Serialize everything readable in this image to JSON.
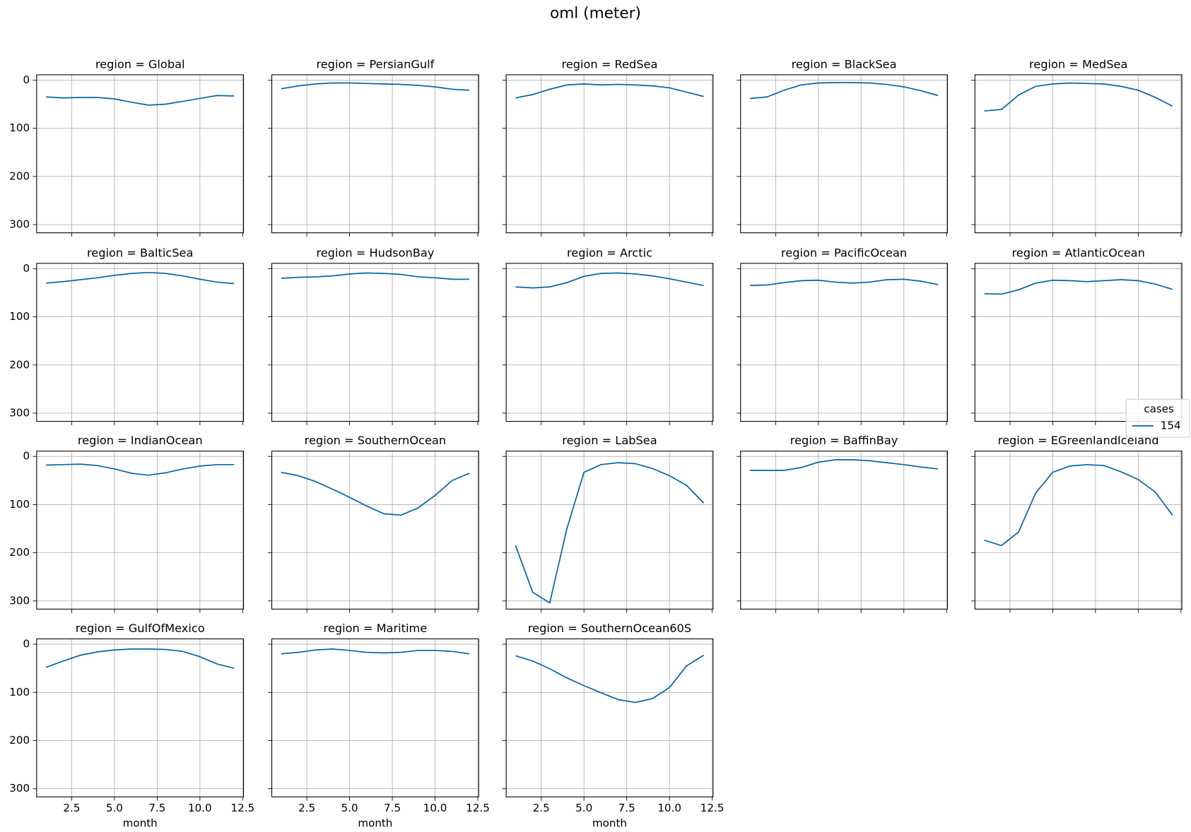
{
  "title": "oml (meter)",
  "legend": {
    "title": "cases",
    "location": "center right"
  },
  "chart_data": [
    {
      "type": "line",
      "title": "region = Global",
      "x": [
        1,
        2,
        3,
        4,
        5,
        6,
        7,
        8,
        9,
        10,
        11,
        12
      ],
      "series": [
        {
          "name": "154",
          "color": "#0567a6",
          "values": [
            35,
            37,
            36,
            36,
            39,
            46,
            52,
            50,
            44,
            38,
            32,
            33
          ]
        }
      ],
      "xlim": [
        0.45,
        12.55
      ],
      "ylim": [
        317,
        -11
      ],
      "xticks": [
        2.5,
        5,
        7.5,
        10,
        12.5
      ],
      "yticks": [
        0,
        100,
        200,
        300
      ],
      "grid": true,
      "xtick_labels": false,
      "ytick_labels": true
    },
    {
      "type": "line",
      "title": "region = PersianGulf",
      "x": [
        1,
        2,
        3,
        4,
        5,
        6,
        7,
        8,
        9,
        10,
        11,
        12
      ],
      "series": [
        {
          "name": "154",
          "color": "#0567a6",
          "values": [
            18,
            12,
            8,
            6,
            6,
            7,
            8,
            9,
            11,
            14,
            19,
            21
          ]
        }
      ],
      "xlim": [
        0.45,
        12.55
      ],
      "ylim": [
        317,
        -11
      ],
      "xticks": [
        2.5,
        5,
        7.5,
        10,
        12.5
      ],
      "yticks": [
        0,
        100,
        200,
        300
      ],
      "grid": true,
      "xtick_labels": false,
      "ytick_labels": false
    },
    {
      "type": "line",
      "title": "region = RedSea",
      "x": [
        1,
        2,
        3,
        4,
        5,
        6,
        7,
        8,
        9,
        10,
        11,
        12
      ],
      "series": [
        {
          "name": "154",
          "color": "#0567a6",
          "values": [
            37,
            30,
            19,
            10,
            8,
            10,
            9,
            10,
            12,
            16,
            25,
            34
          ]
        }
      ],
      "xlim": [
        0.45,
        12.55
      ],
      "ylim": [
        317,
        -11
      ],
      "xticks": [
        2.5,
        5,
        7.5,
        10,
        12.5
      ],
      "yticks": [
        0,
        100,
        200,
        300
      ],
      "grid": true,
      "xtick_labels": false,
      "ytick_labels": false
    },
    {
      "type": "line",
      "title": "region = BlackSea",
      "x": [
        1,
        2,
        3,
        4,
        5,
        6,
        7,
        8,
        9,
        10,
        11,
        12
      ],
      "series": [
        {
          "name": "154",
          "color": "#0567a6",
          "values": [
            38,
            35,
            21,
            10,
            6,
            5,
            5,
            6,
            9,
            14,
            22,
            32
          ]
        }
      ],
      "xlim": [
        0.45,
        12.55
      ],
      "ylim": [
        317,
        -11
      ],
      "xticks": [
        2.5,
        5,
        7.5,
        10,
        12.5
      ],
      "yticks": [
        0,
        100,
        200,
        300
      ],
      "grid": true,
      "xtick_labels": false,
      "ytick_labels": false
    },
    {
      "type": "line",
      "title": "region = MedSea",
      "x": [
        1,
        2,
        3,
        4,
        5,
        6,
        7,
        8,
        9,
        10,
        11,
        12
      ],
      "series": [
        {
          "name": "154",
          "color": "#0567a6",
          "values": [
            64,
            61,
            31,
            13,
            8,
            6,
            7,
            8,
            13,
            21,
            36,
            54
          ]
        }
      ],
      "xlim": [
        0.45,
        12.55
      ],
      "ylim": [
        317,
        -11
      ],
      "xticks": [
        2.5,
        5,
        7.5,
        10,
        12.5
      ],
      "yticks": [
        0,
        100,
        200,
        300
      ],
      "grid": true,
      "xtick_labels": false,
      "ytick_labels": false
    },
    {
      "type": "line",
      "title": "region = BalticSea",
      "x": [
        1,
        2,
        3,
        4,
        5,
        6,
        7,
        8,
        9,
        10,
        11,
        12
      ],
      "series": [
        {
          "name": "154",
          "color": "#0567a6",
          "values": [
            30,
            27,
            23,
            19,
            14,
            10,
            8,
            10,
            15,
            22,
            28,
            31
          ]
        }
      ],
      "xlim": [
        0.45,
        12.55
      ],
      "ylim": [
        317,
        -11
      ],
      "xticks": [
        2.5,
        5,
        7.5,
        10,
        12.5
      ],
      "yticks": [
        0,
        100,
        200,
        300
      ],
      "grid": true,
      "xtick_labels": false,
      "ytick_labels": true
    },
    {
      "type": "line",
      "title": "region = HudsonBay",
      "x": [
        1,
        2,
        3,
        4,
        5,
        6,
        7,
        8,
        9,
        10,
        11,
        12
      ],
      "series": [
        {
          "name": "154",
          "color": "#0567a6",
          "values": [
            20,
            18,
            17,
            15,
            11,
            9,
            10,
            12,
            17,
            19,
            22,
            22
          ]
        }
      ],
      "xlim": [
        0.45,
        12.55
      ],
      "ylim": [
        317,
        -11
      ],
      "xticks": [
        2.5,
        5,
        7.5,
        10,
        12.5
      ],
      "yticks": [
        0,
        100,
        200,
        300
      ],
      "grid": true,
      "xtick_labels": false,
      "ytick_labels": false
    },
    {
      "type": "line",
      "title": "region = Arctic",
      "x": [
        1,
        2,
        3,
        4,
        5,
        6,
        7,
        8,
        9,
        10,
        11,
        12
      ],
      "series": [
        {
          "name": "154",
          "color": "#0567a6",
          "values": [
            38,
            40,
            38,
            29,
            16,
            10,
            9,
            11,
            15,
            21,
            28,
            35
          ]
        }
      ],
      "xlim": [
        0.45,
        12.55
      ],
      "ylim": [
        317,
        -11
      ],
      "xticks": [
        2.5,
        5,
        7.5,
        10,
        12.5
      ],
      "yticks": [
        0,
        100,
        200,
        300
      ],
      "grid": true,
      "xtick_labels": false,
      "ytick_labels": false
    },
    {
      "type": "line",
      "title": "region = PacificOcean",
      "x": [
        1,
        2,
        3,
        4,
        5,
        6,
        7,
        8,
        9,
        10,
        11,
        12
      ],
      "series": [
        {
          "name": "154",
          "color": "#0567a6",
          "values": [
            35,
            34,
            29,
            25,
            24,
            28,
            30,
            28,
            23,
            22,
            26,
            33
          ]
        }
      ],
      "xlim": [
        0.45,
        12.55
      ],
      "ylim": [
        317,
        -11
      ],
      "xticks": [
        2.5,
        5,
        7.5,
        10,
        12.5
      ],
      "yticks": [
        0,
        100,
        200,
        300
      ],
      "grid": true,
      "xtick_labels": false,
      "ytick_labels": false
    },
    {
      "type": "line",
      "title": "region = AtlanticOcean",
      "x": [
        1,
        2,
        3,
        4,
        5,
        6,
        7,
        8,
        9,
        10,
        11,
        12
      ],
      "series": [
        {
          "name": "154",
          "color": "#0567a6",
          "values": [
            52,
            53,
            44,
            30,
            24,
            25,
            27,
            25,
            23,
            25,
            32,
            43
          ]
        }
      ],
      "xlim": [
        0.45,
        12.55
      ],
      "ylim": [
        317,
        -11
      ],
      "xticks": [
        2.5,
        5,
        7.5,
        10,
        12.5
      ],
      "yticks": [
        0,
        100,
        200,
        300
      ],
      "grid": true,
      "xtick_labels": false,
      "ytick_labels": false
    },
    {
      "type": "line",
      "title": "region = IndianOcean",
      "x": [
        1,
        2,
        3,
        4,
        5,
        6,
        7,
        8,
        9,
        10,
        11,
        12
      ],
      "series": [
        {
          "name": "154",
          "color": "#0567a6",
          "values": [
            18,
            17,
            16,
            19,
            26,
            35,
            39,
            34,
            26,
            20,
            17,
            17
          ]
        }
      ],
      "xlim": [
        0.45,
        12.55
      ],
      "ylim": [
        317,
        -11
      ],
      "xticks": [
        2.5,
        5,
        7.5,
        10,
        12.5
      ],
      "yticks": [
        0,
        100,
        200,
        300
      ],
      "grid": true,
      "xtick_labels": false,
      "ytick_labels": true
    },
    {
      "type": "line",
      "title": "region = SouthernOcean",
      "x": [
        1,
        2,
        3,
        4,
        5,
        6,
        7,
        8,
        9,
        10,
        11,
        12
      ],
      "series": [
        {
          "name": "154",
          "color": "#0567a6",
          "values": [
            33,
            40,
            52,
            68,
            85,
            103,
            119,
            122,
            107,
            81,
            50,
            35
          ]
        }
      ],
      "xlim": [
        0.45,
        12.55
      ],
      "ylim": [
        317,
        -11
      ],
      "xticks": [
        2.5,
        5,
        7.5,
        10,
        12.5
      ],
      "yticks": [
        0,
        100,
        200,
        300
      ],
      "grid": true,
      "xtick_labels": false,
      "ytick_labels": false
    },
    {
      "type": "line",
      "title": "region = LabSea",
      "x": [
        1,
        2,
        3,
        4,
        5,
        6,
        7,
        8,
        9,
        10,
        11,
        12
      ],
      "series": [
        {
          "name": "154",
          "color": "#0567a6",
          "values": [
            185,
            282,
            304,
            150,
            33,
            17,
            13,
            15,
            25,
            40,
            60,
            97
          ]
        }
      ],
      "xlim": [
        0.45,
        12.55
      ],
      "ylim": [
        317,
        -11
      ],
      "xticks": [
        2.5,
        5,
        7.5,
        10,
        12.5
      ],
      "yticks": [
        0,
        100,
        200,
        300
      ],
      "grid": true,
      "xtick_labels": false,
      "ytick_labels": false
    },
    {
      "type": "line",
      "title": "region = BaffinBay",
      "x": [
        1,
        2,
        3,
        4,
        5,
        6,
        7,
        8,
        9,
        10,
        11,
        12
      ],
      "series": [
        {
          "name": "154",
          "color": "#0567a6",
          "values": [
            29,
            29,
            29,
            23,
            12,
            7,
            7,
            9,
            13,
            17,
            22,
            26
          ]
        }
      ],
      "xlim": [
        0.45,
        12.55
      ],
      "ylim": [
        317,
        -11
      ],
      "xticks": [
        2.5,
        5,
        7.5,
        10,
        12.5
      ],
      "yticks": [
        0,
        100,
        200,
        300
      ],
      "grid": true,
      "xtick_labels": false,
      "ytick_labels": false
    },
    {
      "type": "line",
      "title": "region = EGreenlandIceland",
      "x": [
        1,
        2,
        3,
        4,
        5,
        6,
        7,
        8,
        9,
        10,
        11,
        12
      ],
      "series": [
        {
          "name": "154",
          "color": "#0567a6",
          "values": [
            174,
            185,
            157,
            76,
            33,
            20,
            17,
            19,
            32,
            48,
            74,
            122
          ]
        }
      ],
      "xlim": [
        0.45,
        12.55
      ],
      "ylim": [
        317,
        -11
      ],
      "xticks": [
        2.5,
        5,
        7.5,
        10,
        12.5
      ],
      "yticks": [
        0,
        100,
        200,
        300
      ],
      "grid": true,
      "xtick_labels": false,
      "ytick_labels": false
    },
    {
      "type": "line",
      "title": "region = GulfOfMexico",
      "x": [
        1,
        2,
        3,
        4,
        5,
        6,
        7,
        8,
        9,
        10,
        11,
        12
      ],
      "series": [
        {
          "name": "154",
          "color": "#0567a6",
          "values": [
            48,
            35,
            23,
            16,
            12,
            10,
            10,
            11,
            15,
            26,
            41,
            50
          ]
        }
      ],
      "xlim": [
        0.45,
        12.55
      ],
      "ylim": [
        317,
        -11
      ],
      "xticks": [
        2.5,
        {
          "value": 5,
          "label": "5.0"
        },
        7.5,
        {
          "value": 10,
          "label": "10.0"
        },
        12.5
      ],
      "yticks": [
        0,
        100,
        200,
        300
      ],
      "grid": true,
      "xtick_labels": true,
      "ytick_labels": true,
      "xlabel": "month"
    },
    {
      "type": "line",
      "title": "region = Maritime",
      "x": [
        1,
        2,
        3,
        4,
        5,
        6,
        7,
        8,
        9,
        10,
        11,
        12
      ],
      "series": [
        {
          "name": "154",
          "color": "#0567a6",
          "values": [
            20,
            17,
            12,
            10,
            13,
            17,
            18,
            17,
            13,
            13,
            15,
            20
          ]
        }
      ],
      "xlim": [
        0.45,
        12.55
      ],
      "ylim": [
        317,
        -11
      ],
      "xticks": [
        2.5,
        {
          "value": 5,
          "label": "5.0"
        },
        7.5,
        {
          "value": 10,
          "label": "10.0"
        },
        12.5
      ],
      "yticks": [
        0,
        100,
        200,
        300
      ],
      "grid": true,
      "xtick_labels": true,
      "ytick_labels": false,
      "xlabel": "month"
    },
    {
      "type": "line",
      "title": "region = SouthernOcean60S",
      "x": [
        1,
        2,
        3,
        4,
        5,
        6,
        7,
        8,
        9,
        10,
        11,
        12
      ],
      "series": [
        {
          "name": "154",
          "color": "#0567a6",
          "values": [
            24,
            35,
            51,
            70,
            86,
            101,
            115,
            121,
            113,
            90,
            45,
            23
          ]
        }
      ],
      "xlim": [
        0.45,
        12.55
      ],
      "ylim": [
        317,
        -11
      ],
      "xticks": [
        2.5,
        {
          "value": 5,
          "label": "5.0"
        },
        7.5,
        {
          "value": 10,
          "label": "10.0"
        },
        12.5
      ],
      "yticks": [
        0,
        100,
        200,
        300
      ],
      "grid": true,
      "xtick_labels": true,
      "ytick_labels": false,
      "xlabel": "month"
    }
  ]
}
